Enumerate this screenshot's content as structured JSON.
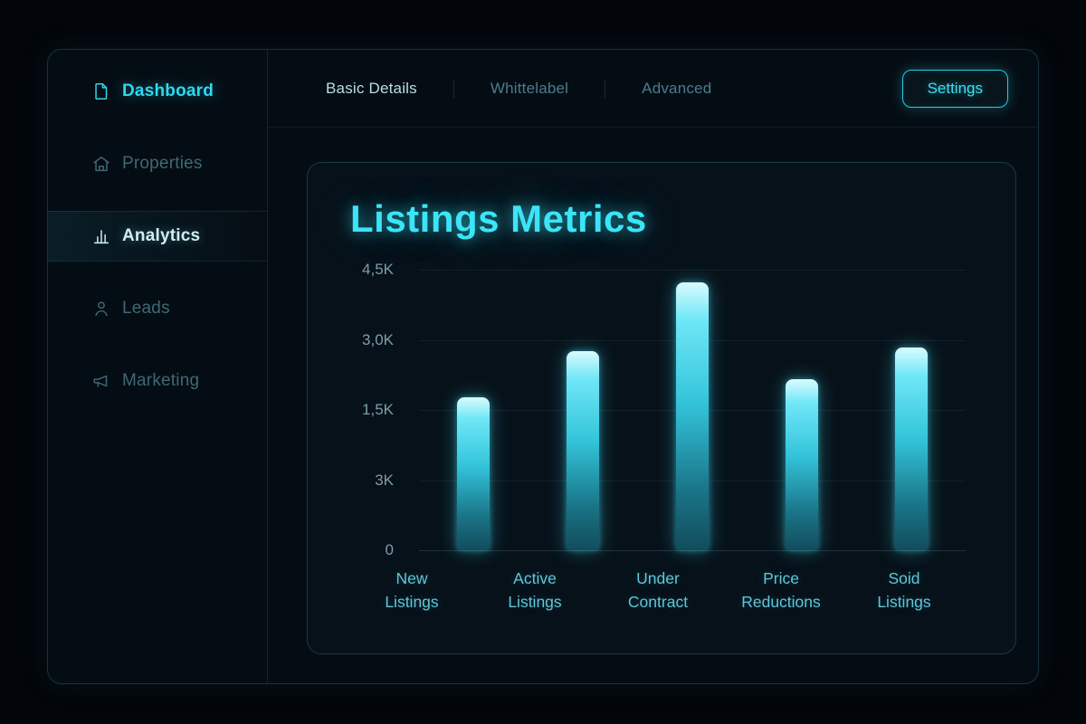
{
  "accent_color": "#3ae0f5",
  "sidebar": {
    "items": [
      {
        "label": "Dashboard",
        "icon": "document-icon",
        "state": "bright"
      },
      {
        "label": "Properties",
        "icon": "building-icon",
        "state": "default"
      },
      {
        "label": "Analytics",
        "icon": "chart-icon",
        "state": "selected"
      },
      {
        "label": "Leads",
        "icon": "person-icon",
        "state": "default"
      },
      {
        "label": "Marketing",
        "icon": "megaphone-icon",
        "state": "default"
      }
    ]
  },
  "topbar": {
    "tabs": [
      {
        "label": "Basic Details",
        "active": true
      },
      {
        "label": "Whittelabel",
        "active": false
      },
      {
        "label": "Advanced",
        "active": false
      }
    ],
    "settings_label": "Settings"
  },
  "chart_data": {
    "type": "bar",
    "title": "Listings Metrics",
    "categories": [
      [
        "New",
        "Listings"
      ],
      [
        "Active",
        "Listings"
      ],
      [
        "Under",
        "Contract"
      ],
      [
        "Price",
        "Reductions"
      ],
      [
        "Soid",
        "Listings"
      ]
    ],
    "values": [
      2.45,
      3.2,
      4.3,
      2.75,
      3.25
    ],
    "unit": "K",
    "ylim": [
      0,
      4.5
    ],
    "y_ticks": [
      "4,5K",
      "3,0K",
      "1,5K",
      "3K",
      "0"
    ],
    "xlabel": "",
    "ylabel": "",
    "grid": true,
    "legend": false,
    "bar_color": "#3fdcf2"
  }
}
